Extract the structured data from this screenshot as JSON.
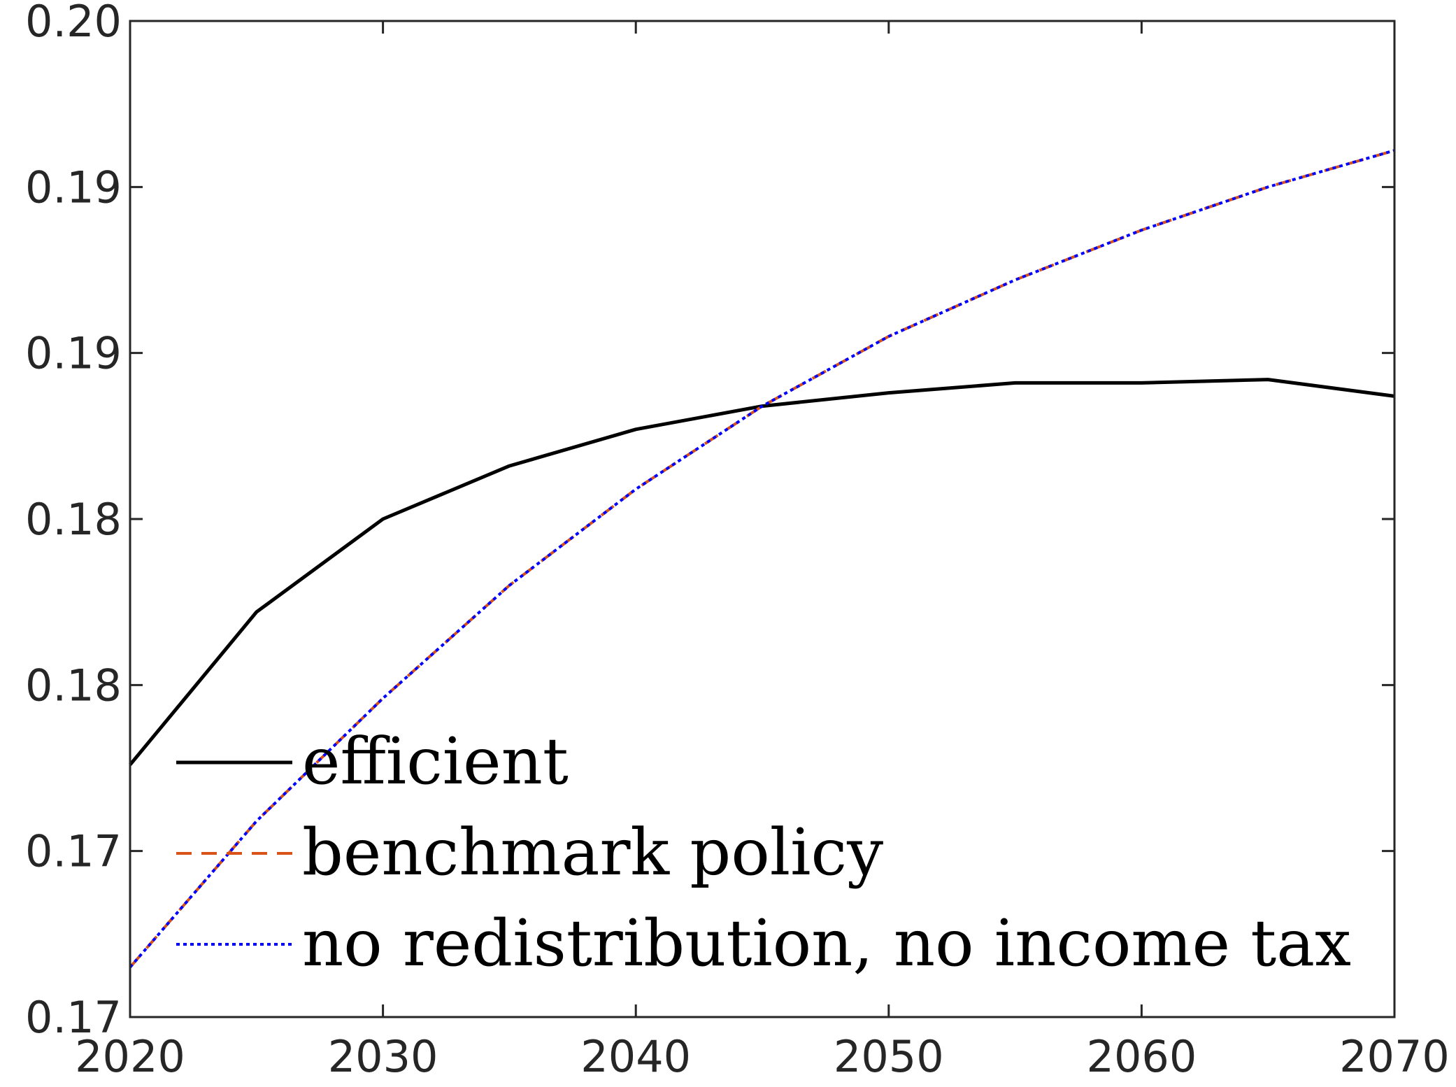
{
  "chart_data": {
    "type": "line",
    "title": "",
    "xlabel": "",
    "ylabel": "",
    "xlim": [
      2020,
      2070
    ],
    "ylim": [
      0.17,
      0.2
    ],
    "x_ticks": [
      2020,
      2030,
      2040,
      2050,
      2060,
      2070
    ],
    "y_ticks": [
      0.17,
      0.175,
      0.18,
      0.185,
      0.19,
      0.195,
      0.2
    ],
    "y_tick_labels": [
      "0.17",
      "0.17",
      "0.18",
      "0.18",
      "0.19",
      "0.19",
      "0.20"
    ],
    "grid": false,
    "legend_position": "bottom-left",
    "x": [
      2020,
      2025,
      2030,
      2035,
      2040,
      2045,
      2050,
      2055,
      2060,
      2065,
      2070
    ],
    "series": [
      {
        "name": "efficient",
        "color": "#000000",
        "style": "solid",
        "values": [
          0.1776,
          0.1822,
          0.185,
          0.1866,
          0.1877,
          0.1884,
          0.1888,
          0.1891,
          0.1891,
          0.1892,
          0.1887
        ]
      },
      {
        "name": "benchmark policy",
        "color": "#d95319",
        "style": "dashed",
        "values": [
          0.1715,
          0.1759,
          0.1796,
          0.183,
          0.1859,
          0.1884,
          0.1905,
          0.1922,
          0.1937,
          0.195,
          0.1961
        ]
      },
      {
        "name": "no redistribution, no income tax",
        "color": "#0000ff",
        "style": "dotted",
        "values": [
          0.1715,
          0.1759,
          0.1796,
          0.183,
          0.1859,
          0.1884,
          0.1905,
          0.1922,
          0.1937,
          0.195,
          0.1961
        ]
      }
    ]
  }
}
